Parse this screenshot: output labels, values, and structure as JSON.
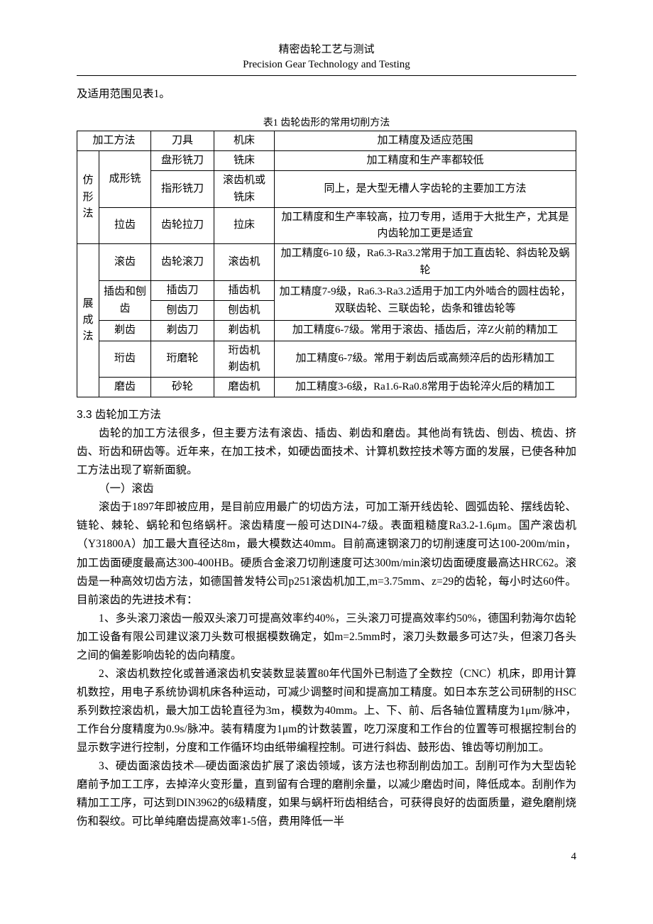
{
  "header": {
    "title_cn": "精密齿轮工艺与测试",
    "title_en": "Precision Gear Technology and Testing"
  },
  "intro": "及适用范围见表1。",
  "table": {
    "caption": "表1 齿轮齿形的常用切削方法",
    "headers": {
      "method": "加工方法",
      "tool": "刀具",
      "machine": "机床",
      "range": "加工精度及适应范围"
    },
    "group1": {
      "label": "仿形法",
      "rows": [
        {
          "sub": "成形铣",
          "tool": "盘形铣刀",
          "machine": "铣床",
          "range": "加工精度和生产率都较低"
        },
        {
          "sub": "",
          "tool": "指形铣刀",
          "machine": "滚齿机或铣床",
          "range": "同上，是大型无槽人字齿轮的主要加工方法"
        },
        {
          "sub": "拉齿",
          "tool": "齿轮拉刀",
          "machine": "拉床",
          "range": "加工精度和生产率较高，拉刀专用，适用于大批生产，尤其是内齿轮加工更是适宜"
        }
      ]
    },
    "group2": {
      "label": "展成法",
      "rows": [
        {
          "sub": "滚齿",
          "tool": "齿轮滚刀",
          "machine": "滚齿机",
          "range": "加工精度6-10 级，Ra6.3-Ra3.2常用于加工直齿轮、斜齿轮及蜗轮"
        },
        {
          "sub": "插齿和刨齿",
          "tool": "插齿刀",
          "tool2": "刨齿刀",
          "machine": "插齿机",
          "machine2": "刨齿机",
          "range": "加工精度7-9级，Ra6.3-Ra3.2适用于加工内外啮合的圆柱齿轮，双联齿轮、三联齿轮，齿条和锥齿轮等"
        },
        {
          "sub": "剃齿",
          "tool": "剃齿刀",
          "machine": "剃齿机",
          "range": "加工精度6-7级。常用于滚齿、插齿后，淬Z火前的精加工"
        },
        {
          "sub": "珩齿",
          "tool": "珩磨轮",
          "machine": "珩齿机",
          "machine2": "剃齿机",
          "range": "加工精度6-7级。常用于剃齿后或高频淬后的齿形精加工"
        },
        {
          "sub": "磨齿",
          "tool": "砂轮",
          "machine": "磨齿机",
          "range": "加工精度3-6级，Ra1.6-Ra0.8常用于齿轮淬火后的精加工"
        }
      ]
    }
  },
  "section": {
    "title": "3.3 齿轮加工方法",
    "p1": "齿轮的加工方法很多，但主要方法有滚齿、插齿、剃齿和磨齿。其他尚有铣齿、刨齿、梳齿、挤齿、珩齿和研齿等。近年来，在加工技术，如硬齿面技术、计算机数控技术等方面的发展，已使各种加工方法出现了崭新面貌。",
    "h1": "（一）滚齿",
    "p2": "滚齿于1897年即被应用，是目前应用最广的切齿方法，可加工渐开线齿轮、圆弧齿轮、摆线齿轮、链轮、棘轮、蜗轮和包络蜗杆。滚齿精度一般可达DIN4-7级。表面粗糙度Ra3.2-1.6μm。国产滚齿机（Y31800A）加工最大直径达8m，最大模数达40mm。目前高速钢滚刀的切削速度可达100-200m/min，加工齿面硬度最高达300-400HB。硬质合金滚刀切削速度可达300m/min滚切齿面硬度最高达HRC62。滚齿是一种高效切齿方法，如德国普发特公司p251滚齿机加工,m=3.75mm、z=29的齿轮，每小时达60件。目前滚齿的先进技术有：",
    "p3": "1、多头滚刀滚齿一般双头滚刀可提高效率约40%，三头滚刀可提高效率约50%，德国利勃海尔齿轮加工设备有限公司建议滚刀头数可根据模数确定，如m=2.5mm时，滚刀头数最多可达7头，但滚刀各头之间的偏差影响齿轮的齿向精度。",
    "p4": "2、滚齿机数控化或普通滚齿机安装数显装置80年代国外已制造了全数控（CNC）机床，即用计算机数控，用电子系统协调机床各种运动，可减少调整时间和提高加工精度。如日本东芝公司研制的HSC系列数控滚齿机，最大加工齿轮直径为3m，模数为40mm。上、下、前、后各轴位置精度为1μm/脉冲，工作台分度精度为0.9s/脉冲。装有精度为1μm的计数装置，吃刀深度和工作台的位置等可根据控制台的显示数字进行控制，分度和工作循环均由纸带编程控制。可进行斜齿、鼓形齿、锥齿等切削加工。",
    "p5": "3、硬齿面滚齿技术—硬齿面滚齿扩展了滚齿领域，该方法也称刮削齿加工。刮削可作为大型齿轮磨前予加工工序，去掉淬火变形量，直到留有合理的磨削余量，以减少磨齿时间，降低成本。刮削作为精加工工序，可达到DIN3962的6级精度，如果与蜗杆珩齿相结合，可获得良好的齿面质量，避免磨削烧伤和裂纹。可比单纯磨齿提高效率1-5倍，费用降低一半"
  },
  "page_number": "4"
}
